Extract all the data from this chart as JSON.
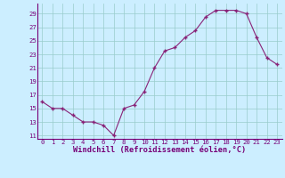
{
  "x": [
    0,
    1,
    2,
    3,
    4,
    5,
    6,
    7,
    8,
    9,
    10,
    11,
    12,
    13,
    14,
    15,
    16,
    17,
    18,
    19,
    20,
    21,
    22,
    23
  ],
  "y": [
    16,
    15,
    15,
    14,
    13,
    13,
    12.5,
    11,
    15,
    15.5,
    17.5,
    21,
    23.5,
    24,
    25.5,
    26.5,
    28.5,
    29.5,
    29.5,
    29.5,
    29,
    25.5,
    22.5,
    21.5
  ],
  "line_color": "#882277",
  "marker_color": "#882277",
  "bg_color": "#cceeff",
  "grid_color": "#99cccc",
  "xlabel": "Windchill (Refroidissement éolien,°C)",
  "ylim": [
    10.5,
    30.5
  ],
  "yticks": [
    11,
    13,
    15,
    17,
    19,
    21,
    23,
    25,
    27,
    29
  ],
  "xticks": [
    0,
    1,
    2,
    3,
    4,
    5,
    6,
    7,
    8,
    9,
    10,
    11,
    12,
    13,
    14,
    15,
    16,
    17,
    18,
    19,
    20,
    21,
    22,
    23
  ],
  "label_color": "#770077",
  "tick_fontsize": 5.2,
  "xlabel_fontsize": 6.2,
  "spine_color": "#770077"
}
